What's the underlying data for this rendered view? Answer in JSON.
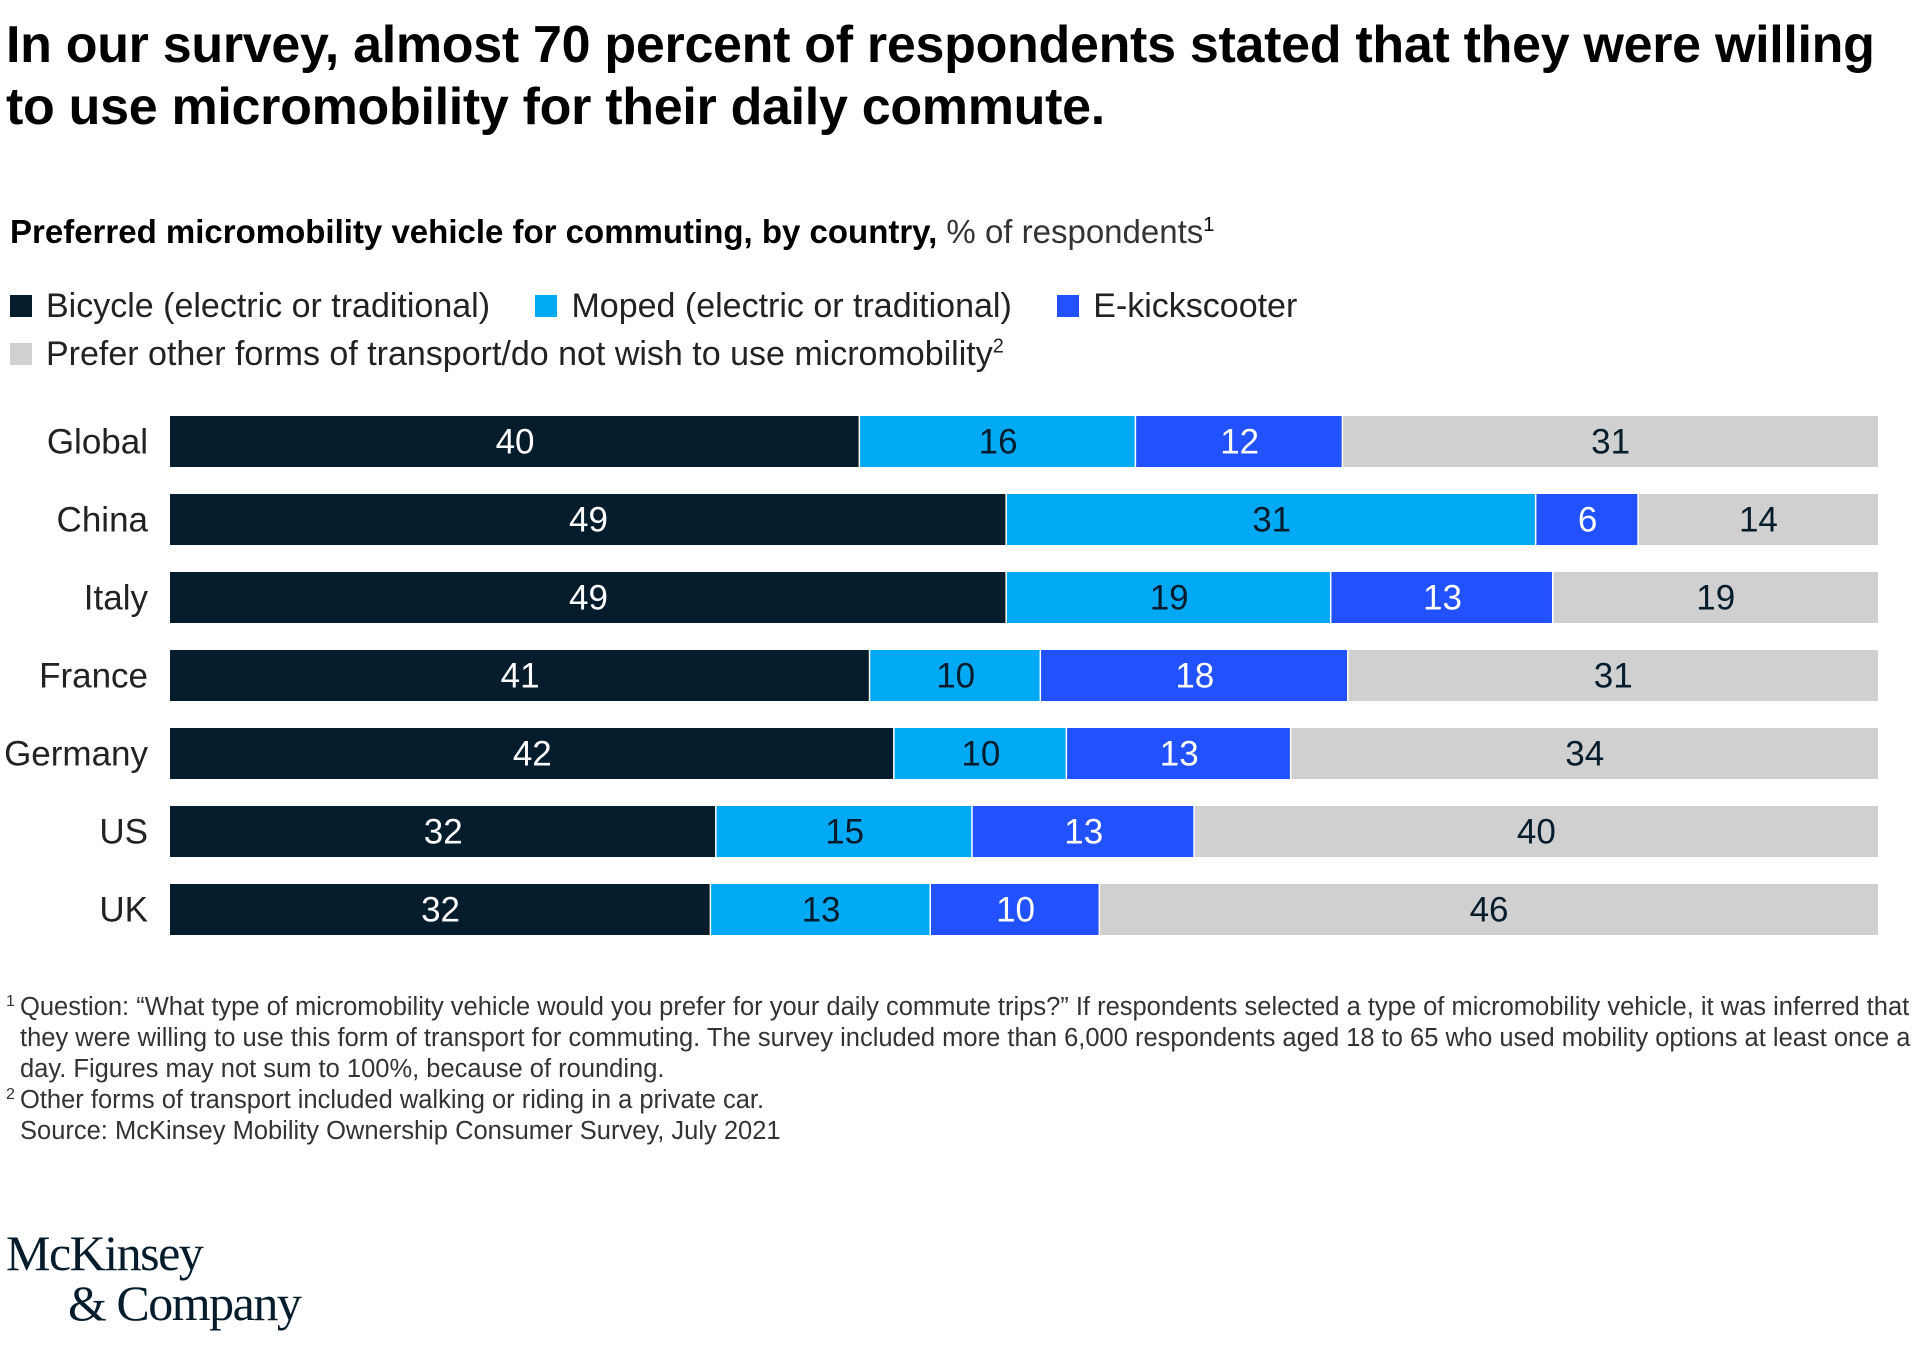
{
  "headline": "In our survey, almost 70 percent of respondents stated that they were willing to use micromobility for their daily commute.",
  "subtitle": {
    "bold": "Preferred micromobility vehicle for commuting, by country,",
    "light": " % of respondents",
    "footnote_mark": "1"
  },
  "legend": [
    {
      "label": "Bicycle (electric or traditional)",
      "color": "#051c2c"
    },
    {
      "label": "Moped (electric or traditional)",
      "color": "#00a9f4"
    },
    {
      "label": "E-kickscooter",
      "color": "#2251ff"
    },
    {
      "label": "Prefer other forms of transport/do not wish to use micromobility",
      "color": "#d0d0d0",
      "footnote_mark": "2"
    }
  ],
  "chart_data": {
    "type": "bar",
    "orientation": "horizontal",
    "stacked": true,
    "unit": "% of respondents",
    "categories": [
      "Global",
      "China",
      "Italy",
      "France",
      "Germany",
      "US",
      "UK"
    ],
    "series": [
      {
        "name": "Bicycle (electric or traditional)",
        "color": "#051c2c",
        "label_color": "#ffffff",
        "values": [
          40,
          49,
          49,
          41,
          42,
          32,
          32
        ]
      },
      {
        "name": "Moped (electric or traditional)",
        "color": "#00a9f4",
        "label_color": "#051c2c",
        "values": [
          16,
          31,
          19,
          10,
          10,
          15,
          13
        ]
      },
      {
        "name": "E-kickscooter",
        "color": "#2251ff",
        "label_color": "#ffffff",
        "values": [
          12,
          6,
          13,
          18,
          13,
          13,
          10
        ]
      },
      {
        "name": "Prefer other forms of transport/do not wish to use micromobility",
        "color": "#d0d0d0",
        "label_color": "#051c2c",
        "values": [
          31,
          14,
          19,
          31,
          34,
          40,
          46
        ]
      }
    ],
    "grid": false,
    "legend_position": "top-left"
  },
  "footnotes": [
    {
      "mark": "1",
      "text": "Question: “What type of micromobility vehicle would you prefer for your daily commute trips?” If respondents selected a type of micromobility vehicle, it was inferred that they were willing to use this form of transport for commuting. The survey included more than 6,000 respondents aged 18 to 65 who used mobility options at least once a day. Figures may not sum to 100%, because of rounding."
    },
    {
      "mark": "2",
      "text": "Other forms of transport included walking or riding in a private car."
    }
  ],
  "source": "Source: McKinsey Mobility Ownership Consumer Survey, July 2021",
  "logo": {
    "line1": "McKinsey",
    "line2": "& Company"
  }
}
